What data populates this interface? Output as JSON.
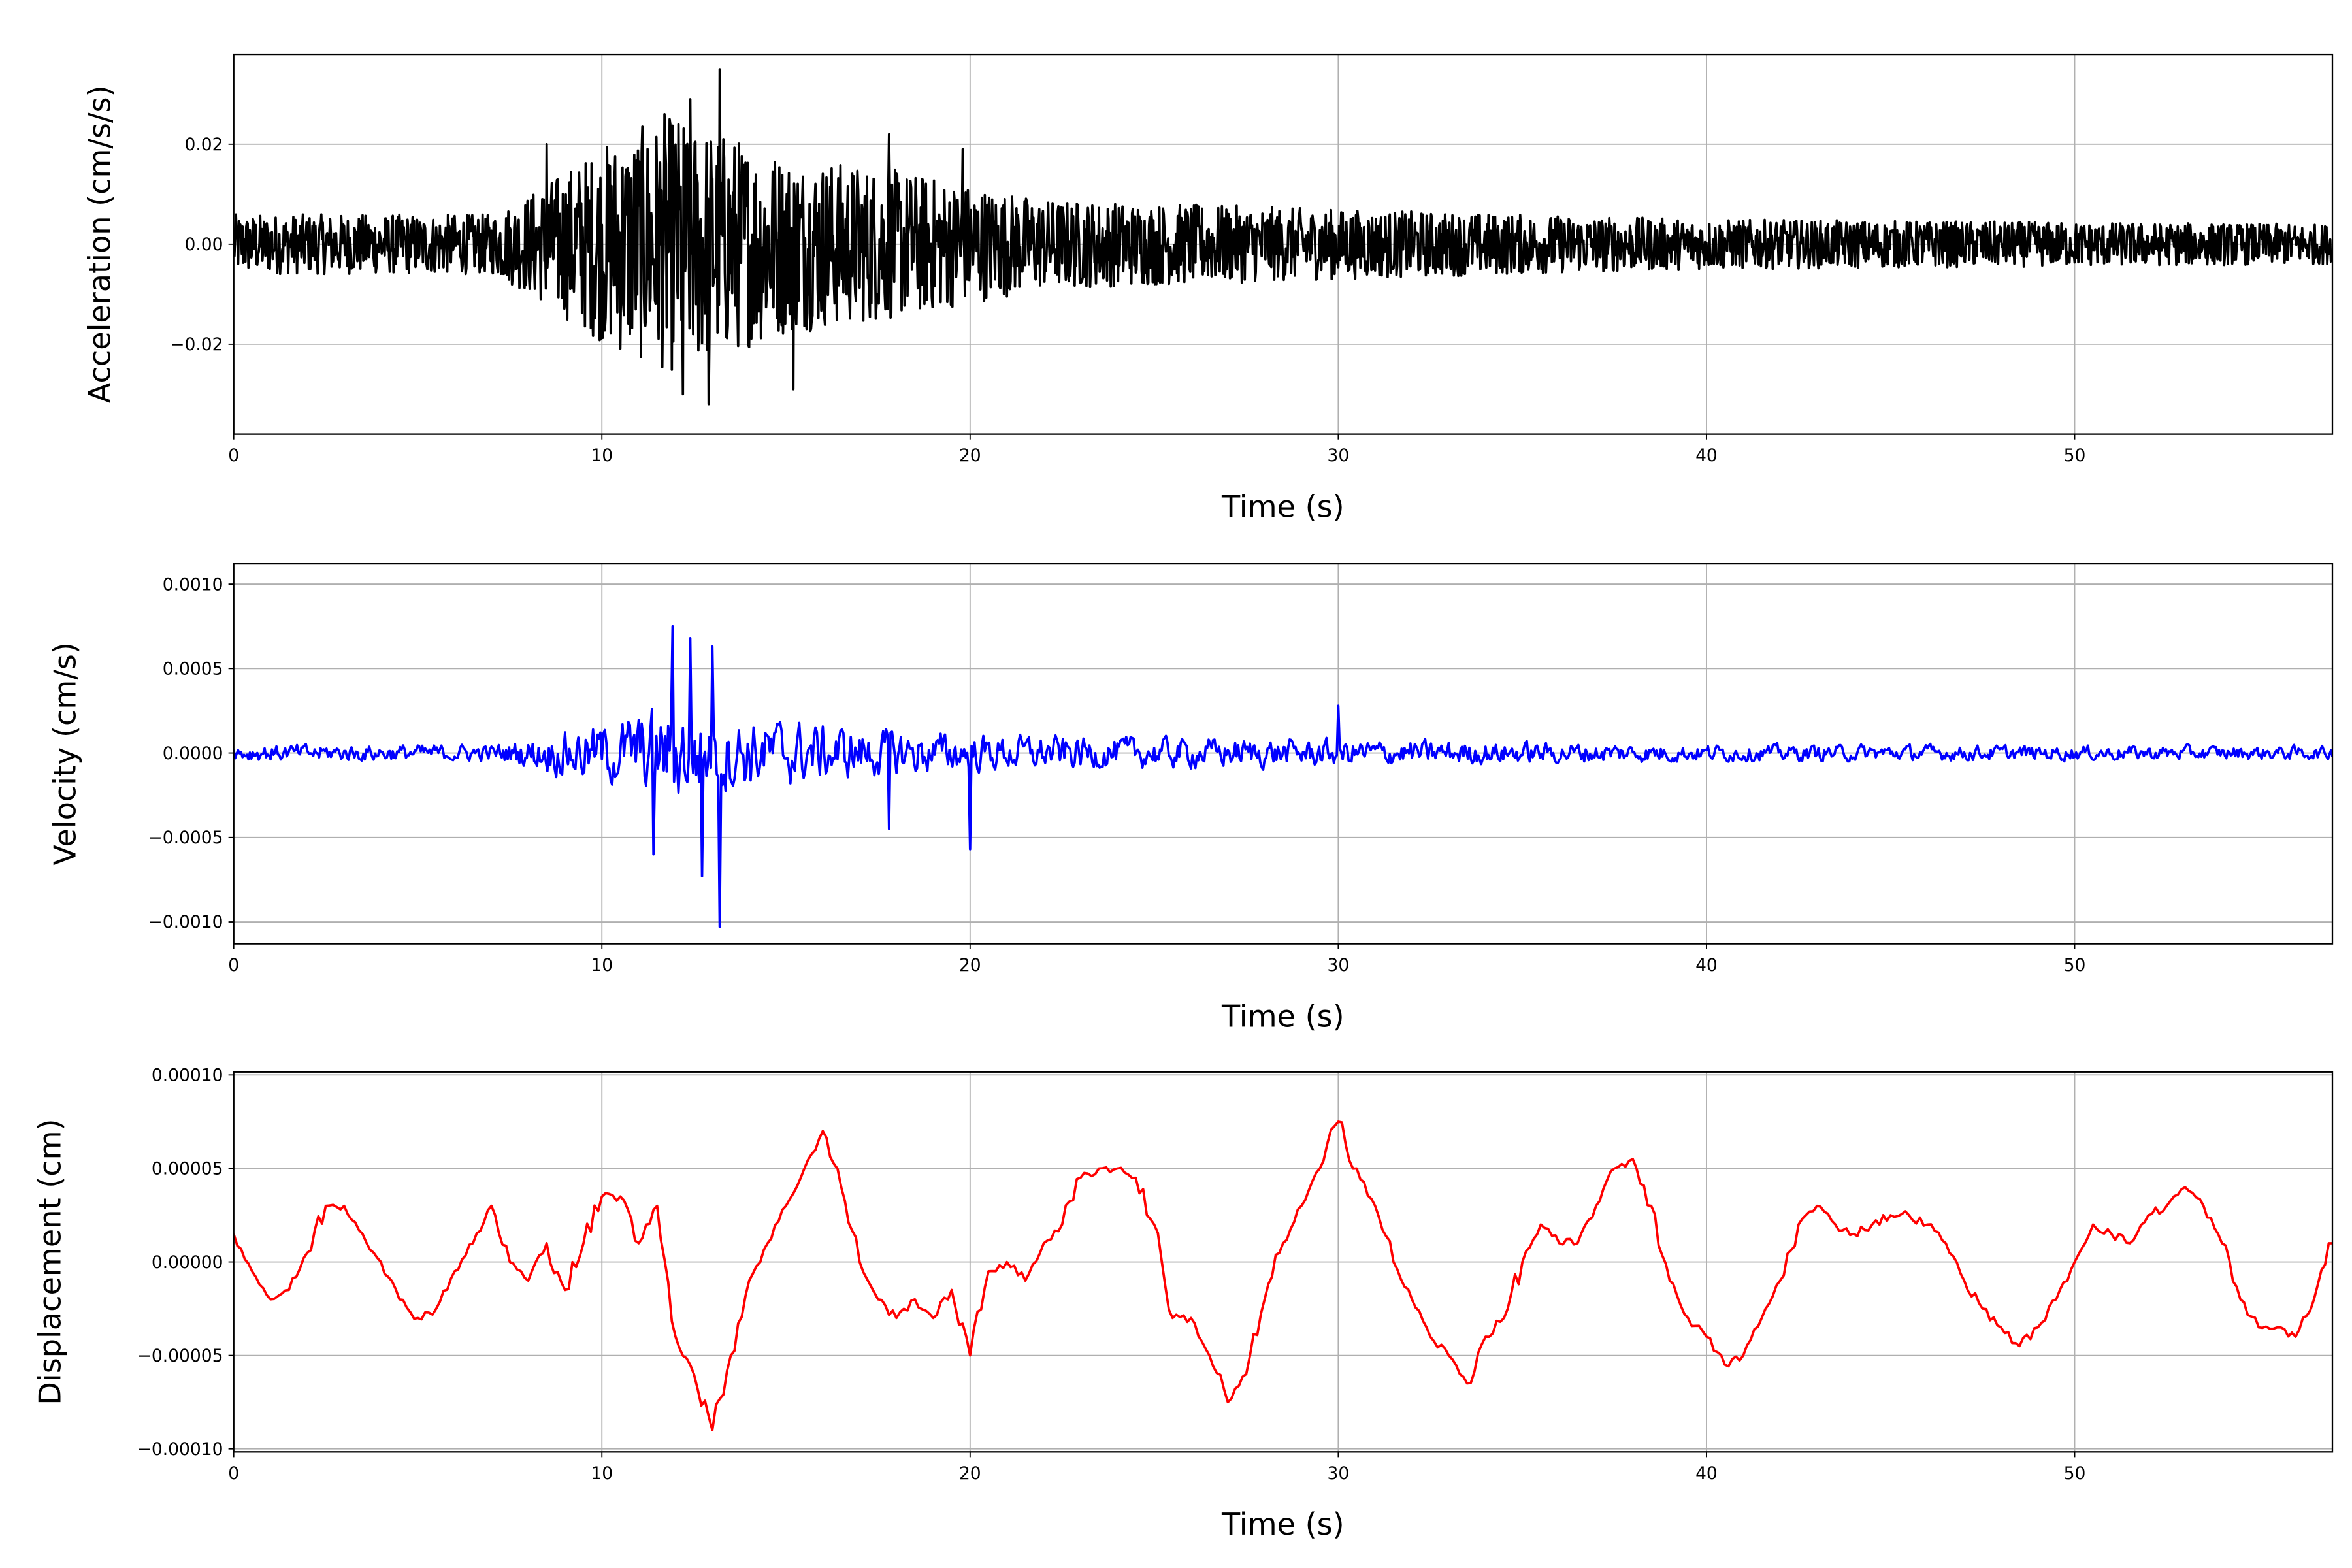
{
  "chart_data": [
    {
      "type": "line",
      "title": "",
      "xlabel": "Time (s)",
      "ylabel": "Acceleration (cm/s/s)",
      "xlim": [
        0,
        57
      ],
      "ylim": [
        -0.038,
        0.038
      ],
      "xticks": [
        "0",
        "10",
        "20",
        "30",
        "40",
        "50"
      ],
      "xtick_values": [
        0,
        10,
        20,
        30,
        40,
        50
      ],
      "yticks": [
        "−0.02",
        "0.00",
        "0.02"
      ],
      "ytick_values": [
        -0.02,
        0,
        0.02
      ],
      "grid": true,
      "color": "#000000",
      "series_name": "acceleration",
      "envelope_note_units": "cm/s/s",
      "envelope": [
        [
          0,
          0.006
        ],
        [
          7,
          0.006
        ],
        [
          8,
          0.01
        ],
        [
          9,
          0.015
        ],
        [
          10.5,
          0.022
        ],
        [
          12,
          0.026
        ],
        [
          13.5,
          0.022
        ],
        [
          15,
          0.018
        ],
        [
          18,
          0.015
        ],
        [
          20,
          0.012
        ],
        [
          22,
          0.009
        ],
        [
          30,
          0.007
        ],
        [
          40,
          0.005
        ],
        [
          57,
          0.004
        ]
      ],
      "peaks": [
        [
          13.2,
          0.035
        ],
        [
          12.9,
          -0.032
        ],
        [
          12.4,
          0.029
        ],
        [
          12.2,
          -0.03
        ],
        [
          11.7,
          0.026
        ],
        [
          15.2,
          -0.029
        ],
        [
          17.8,
          0.022
        ],
        [
          8.5,
          0.02
        ],
        [
          19.8,
          0.019
        ]
      ]
    },
    {
      "type": "line",
      "title": "",
      "xlabel": "Time (s)",
      "ylabel": "Velocity (cm/s)",
      "xlim": [
        0,
        57
      ],
      "ylim": [
        -0.00113,
        0.00112
      ],
      "xticks": [
        "0",
        "10",
        "20",
        "30",
        "40",
        "50"
      ],
      "xtick_values": [
        0,
        10,
        20,
        30,
        40,
        50
      ],
      "yticks": [
        "−0.0010",
        "−0.0005",
        "0.0000",
        "0.0005",
        "0.0010"
      ],
      "ytick_values": [
        -0.001,
        -0.0005,
        0,
        0.0005,
        0.001
      ],
      "grid": true,
      "color": "#0000ff",
      "series_name": "velocity",
      "envelope": [
        [
          0,
          0.0001
        ],
        [
          7,
          0.0001
        ],
        [
          8,
          0.00018
        ],
        [
          9,
          0.00028
        ],
        [
          10.5,
          0.0004
        ],
        [
          12,
          0.0006
        ],
        [
          13.5,
          0.00045
        ],
        [
          15,
          0.00038
        ],
        [
          17,
          0.0003
        ],
        [
          20,
          0.00022
        ],
        [
          25,
          0.00018
        ],
        [
          30,
          0.00016
        ],
        [
          40,
          0.0001
        ],
        [
          57,
          8e-05
        ]
      ],
      "peaks": [
        [
          11.9,
          0.00075
        ],
        [
          13.2,
          -0.00103
        ],
        [
          12.7,
          -0.00073
        ],
        [
          11.4,
          -0.0006
        ],
        [
          20.0,
          -0.00057
        ],
        [
          12.4,
          0.00068
        ],
        [
          13.0,
          0.00063
        ],
        [
          30.0,
          0.00028
        ],
        [
          17.8,
          -0.00045
        ]
      ]
    },
    {
      "type": "line",
      "title": "",
      "xlabel": "Time (s)",
      "ylabel": "Displacement (cm)",
      "xlim": [
        0,
        57
      ],
      "ylim": [
        -0.0001016,
        0.0001016
      ],
      "xticks": [
        "0",
        "10",
        "20",
        "30",
        "40",
        "50"
      ],
      "xtick_values": [
        0,
        10,
        20,
        30,
        40,
        50
      ],
      "yticks": [
        "−0.00010",
        "−0.00005",
        "0.00000",
        "0.00005",
        "0.00010"
      ],
      "ytick_values": [
        -0.0001,
        -5e-05,
        0,
        5e-05,
        0.0001
      ],
      "grid": true,
      "color": "#ff0000",
      "series_name": "displacement",
      "x_step": 0.5,
      "y_scale": 1e-05,
      "values": [
        1.5,
        -0.5,
        -2,
        -1.5,
        0.5,
        3,
        3,
        1.5,
        0,
        -2,
        -3,
        -2.5,
        -0.5,
        1,
        3,
        0,
        -1,
        1,
        -1.5,
        1,
        3.5,
        3.5,
        1,
        3,
        -4,
        -6,
        -9,
        -5,
        -1,
        1,
        3,
        5,
        7,
        4,
        0,
        -2,
        -3,
        -2,
        -3,
        -1.5,
        -5,
        -0.5,
        0,
        -1,
        1,
        2,
        4.5,
        5,
        5,
        4.5,
        2,
        -3,
        -3,
        -5,
        -7.5,
        -6,
        -2,
        1,
        3,
        5,
        7.5,
        5,
        3,
        0,
        -2,
        -4,
        -5,
        -6.5,
        -4,
        -3,
        0,
        2,
        1,
        1,
        3,
        5,
        5.5,
        3,
        -1,
        -3,
        -4,
        -5.5,
        -5,
        -3,
        -1,
        2,
        3,
        2,
        1.5,
        2,
        2.5,
        2.5,
        2,
        1,
        -1,
        -2.5,
        -3.5,
        -4.5,
        -3.5,
        -2,
        0,
        2,
        1.5,
        1,
        2.5,
        3,
        4,
        3,
        1,
        -2,
        -3.5,
        -3.5,
        -4,
        -2,
        1
      ]
    }
  ]
}
